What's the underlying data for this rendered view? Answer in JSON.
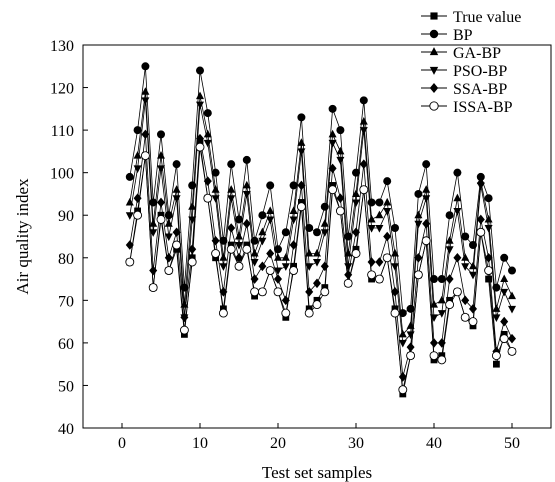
{
  "chart_data": {
    "type": "line",
    "title": "",
    "xlabel": "Test set samples",
    "ylabel": "Air quality index",
    "xlim": [
      -5,
      55
    ],
    "ylim": [
      40,
      130
    ],
    "xticks": [
      0,
      10,
      20,
      30,
      40,
      50
    ],
    "yticks": [
      40,
      50,
      60,
      70,
      80,
      90,
      100,
      110,
      120,
      130
    ],
    "grid": false,
    "legend_position": "top-right",
    "x": [
      1,
      2,
      3,
      4,
      5,
      6,
      7,
      8,
      9,
      10,
      11,
      12,
      13,
      14,
      15,
      16,
      17,
      18,
      19,
      20,
      21,
      22,
      23,
      24,
      25,
      26,
      27,
      28,
      29,
      30,
      31,
      32,
      33,
      34,
      35,
      36,
      37,
      38,
      39,
      40,
      41,
      42,
      43,
      44,
      45,
      46,
      47,
      48,
      49,
      50
    ],
    "series": [
      {
        "name": "True value",
        "marker": "square",
        "values": [
          79,
          91,
          104,
          73,
          90,
          77,
          82,
          62,
          80,
          107,
          94,
          80,
          68,
          83,
          78,
          83,
          71,
          72,
          77,
          72,
          66,
          78,
          93,
          68,
          70,
          73,
          97,
          91,
          74,
          82,
          96,
          75,
          75,
          80,
          68,
          48,
          57,
          76,
          84,
          56,
          57,
          70,
          72,
          66,
          64,
          86,
          75,
          55,
          62,
          58
        ]
      },
      {
        "name": "BP",
        "marker": "circle",
        "values": [
          99,
          110,
          125,
          93,
          109,
          90,
          102,
          73,
          97,
          124,
          114,
          100,
          84,
          102,
          89,
          103,
          84,
          90,
          97,
          82,
          86,
          97,
          113,
          87,
          86,
          92,
          115,
          110,
          85,
          100,
          117,
          93,
          93,
          98,
          87,
          67,
          68,
          95,
          102,
          75,
          75,
          90,
          100,
          85,
          83,
          99,
          94,
          73,
          80,
          77
        ]
      },
      {
        "name": "GA-BP",
        "marker": "triangle-up",
        "values": [
          93,
          104,
          119,
          88,
          104,
          88,
          96,
          69,
          92,
          118,
          109,
          96,
          80,
          96,
          85,
          97,
          81,
          86,
          91,
          80,
          80,
          91,
          107,
          81,
          81,
          88,
          109,
          105,
          81,
          95,
          112,
          89,
          90,
          93,
          81,
          62,
          64,
          90,
          96,
          69,
          70,
          84,
          94,
          80,
          78,
          98,
          89,
          68,
          75,
          71
        ]
      },
      {
        "name": "PSO-BP",
        "marker": "triangle-down",
        "values": [
          90,
          101,
          117,
          86,
          101,
          85,
          94,
          66,
          89,
          116,
          107,
          94,
          78,
          94,
          83,
          95,
          79,
          84,
          89,
          77,
          78,
          89,
          105,
          78,
          79,
          86,
          107,
          103,
          78,
          93,
          110,
          87,
          87,
          91,
          78,
          60,
          62,
          88,
          94,
          66,
          67,
          82,
          91,
          78,
          76,
          97,
          87,
          66,
          72,
          68
        ]
      },
      {
        "name": "SSA-BP",
        "marker": "diamond",
        "values": [
          83,
          94,
          109,
          77,
          93,
          80,
          86,
          66,
          82,
          108,
          98,
          84,
          72,
          87,
          80,
          88,
          75,
          78,
          81,
          75,
          70,
          83,
          97,
          72,
          74,
          78,
          101,
          94,
          76,
          86,
          102,
          79,
          79,
          85,
          72,
          52,
          59,
          80,
          88,
          60,
          60,
          75,
          80,
          70,
          68,
          89,
          80,
          58,
          65,
          61
        ]
      },
      {
        "name": "ISSA-BP",
        "marker": "open-circle",
        "values": [
          79,
          90,
          104,
          73,
          89,
          77,
          83,
          63,
          79,
          106,
          94,
          81,
          67,
          82,
          78,
          82,
          72,
          72,
          77,
          72,
          67,
          77,
          92,
          67,
          69,
          72,
          96,
          91,
          74,
          81,
          96,
          76,
          75,
          80,
          67,
          49,
          57,
          76,
          84,
          57,
          56,
          69,
          72,
          66,
          65,
          86,
          77,
          57,
          61,
          58
        ]
      }
    ]
  }
}
